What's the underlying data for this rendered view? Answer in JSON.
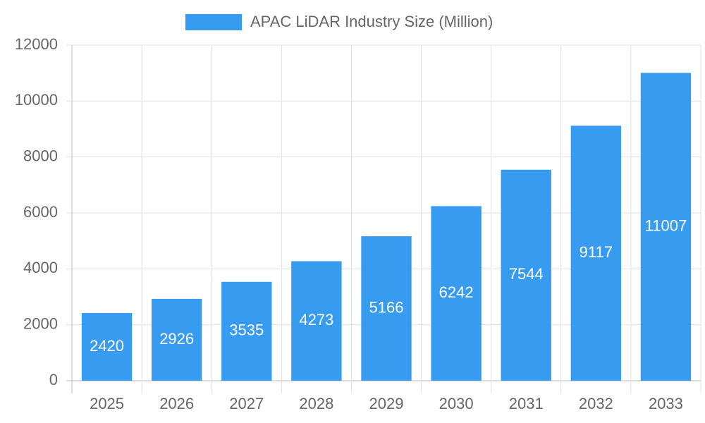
{
  "chart_data": {
    "type": "bar",
    "categories": [
      "2025",
      "2026",
      "2027",
      "2028",
      "2029",
      "2030",
      "2031",
      "2032",
      "2033"
    ],
    "series": [
      {
        "name": "APAC LiDAR Industry Size (Million)",
        "color": "#379bf0",
        "values": [
          2420,
          2926,
          3535,
          4273,
          5166,
          6242,
          7544,
          9117,
          11007
        ]
      }
    ],
    "ylim": [
      0,
      12000
    ],
    "yticks": [
      0,
      2000,
      4000,
      6000,
      8000,
      10000,
      12000
    ],
    "grid": true,
    "legend": "top",
    "data_labels": true
  }
}
